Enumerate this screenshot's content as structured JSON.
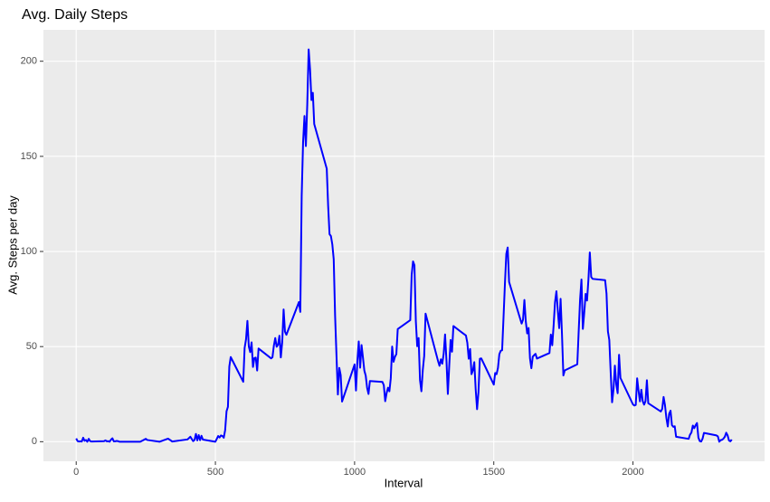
{
  "chart_data": {
    "type": "line",
    "title": "Avg. Daily Steps",
    "x_label": "Interval",
    "y_label": "Avg. Steps per day",
    "x": [
      0,
      5,
      10,
      15,
      20,
      25,
      30,
      35,
      40,
      45,
      50,
      55,
      100,
      105,
      110,
      115,
      120,
      125,
      130,
      135,
      140,
      145,
      150,
      155,
      200,
      230,
      250,
      255,
      300,
      330,
      345,
      400,
      410,
      420,
      425,
      430,
      435,
      440,
      445,
      450,
      455,
      500,
      505,
      510,
      515,
      520,
      525,
      530,
      535,
      540,
      545,
      550,
      555,
      600,
      605,
      610,
      615,
      620,
      625,
      630,
      635,
      640,
      645,
      650,
      655,
      700,
      705,
      710,
      715,
      720,
      725,
      730,
      735,
      740,
      745,
      750,
      755,
      800,
      805,
      810,
      815,
      820,
      825,
      830,
      835,
      840,
      845,
      850,
      855,
      900,
      905,
      910,
      915,
      920,
      925,
      930,
      935,
      940,
      945,
      950,
      955,
      1000,
      1005,
      1010,
      1015,
      1020,
      1025,
      1030,
      1035,
      1040,
      1045,
      1050,
      1055,
      1100,
      1105,
      1110,
      1115,
      1120,
      1125,
      1130,
      1135,
      1140,
      1145,
      1150,
      1155,
      1200,
      1205,
      1210,
      1215,
      1220,
      1225,
      1230,
      1235,
      1240,
      1245,
      1250,
      1255,
      1300,
      1305,
      1310,
      1315,
      1320,
      1325,
      1330,
      1335,
      1340,
      1345,
      1350,
      1355,
      1400,
      1405,
      1410,
      1415,
      1420,
      1425,
      1430,
      1435,
      1440,
      1445,
      1450,
      1455,
      1500,
      1505,
      1510,
      1515,
      1520,
      1525,
      1530,
      1535,
      1540,
      1545,
      1550,
      1555,
      1600,
      1605,
      1610,
      1615,
      1620,
      1625,
      1630,
      1635,
      1640,
      1645,
      1650,
      1655,
      1700,
      1705,
      1710,
      1715,
      1720,
      1725,
      1730,
      1735,
      1740,
      1745,
      1750,
      1755,
      1800,
      1805,
      1810,
      1815,
      1820,
      1825,
      1830,
      1835,
      1840,
      1845,
      1850,
      1855,
      1900,
      1905,
      1910,
      1915,
      1920,
      1925,
      1930,
      1935,
      1940,
      1945,
      1950,
      1955,
      2000,
      2005,
      2010,
      2015,
      2020,
      2025,
      2030,
      2035,
      2040,
      2045,
      2050,
      2055,
      2100,
      2105,
      2110,
      2115,
      2120,
      2125,
      2130,
      2135,
      2140,
      2145,
      2150,
      2155,
      2200,
      2205,
      2210,
      2215,
      2220,
      2225,
      2230,
      2235,
      2240,
      2245,
      2250,
      2255,
      2300,
      2305,
      2310,
      2315,
      2320,
      2325,
      2330,
      2335,
      2340,
      2345,
      2350,
      2355
    ],
    "series": [
      {
        "name": "Avg. Steps",
        "color": "#0000ff",
        "values": [
          1.7,
          0.3,
          0.1,
          0.2,
          0.1,
          2.1,
          0.5,
          0.9,
          0,
          1.5,
          0.3,
          0.1,
          0.3,
          0.7,
          0.2,
          0.3,
          0,
          1.1,
          1.8,
          0.2,
          0.2,
          0.4,
          0.3,
          0,
          0,
          0,
          1.5,
          0.9,
          0,
          1.6,
          0.1,
          1.2,
          2.6,
          0.3,
          0.9,
          4.1,
          0.7,
          3.5,
          0.8,
          3.1,
          1.1,
          0,
          1.5,
          3,
          2.2,
          3.3,
          3,
          2.1,
          6.1,
          16,
          18.3,
          39.5,
          44.5,
          31.5,
          49.3,
          53.8,
          63.5,
          50,
          47.1,
          52.2,
          39.3,
          44,
          44.2,
          37.4,
          49,
          43.8,
          44.4,
          50.5,
          54.5,
          49.9,
          51,
          55.7,
          44.3,
          52.3,
          69.5,
          57.8,
          56.2,
          73.4,
          68.2,
          129.4,
          157.5,
          171.2,
          155.4,
          177.3,
          206.2,
          195.9,
          179.6,
          183.4,
          167,
          143.5,
          124,
          109.1,
          108.1,
          103.7,
          95.9,
          66.2,
          45.2,
          24.8,
          38.8,
          35,
          21.1,
          40.6,
          26.9,
          42.4,
          52.7,
          38.9,
          50.8,
          44.3,
          37.4,
          34.7,
          28.3,
          25.1,
          31.9,
          31.4,
          29.7,
          21.3,
          25.5,
          28.4,
          26.5,
          33.4,
          50,
          42,
          44.6,
          46,
          59.2,
          63.9,
          87.7,
          94.8,
          92.8,
          63.4,
          50.2,
          54.5,
          32.4,
          26.5,
          37.7,
          45,
          67.3,
          42.3,
          39.9,
          43.3,
          41,
          46.2,
          56.4,
          42.8,
          25.1,
          40,
          53.5,
          47.3,
          60.8,
          55.8,
          52,
          43.6,
          48.7,
          35.5,
          37.5,
          41.8,
          27.5,
          17.1,
          26.1,
          43.6,
          43.8,
          30,
          36.1,
          35.5,
          38.8,
          46,
          47.8,
          48.1,
          65.3,
          82.9,
          98.7,
          102.1,
          84,
          62.1,
          64.1,
          74.5,
          63.2,
          56.9,
          59.8,
          43.9,
          38.6,
          44.7,
          45.5,
          46.2,
          43.7,
          46.6,
          56.3,
          50.7,
          61.2,
          73.4,
          79.1,
          68.9,
          59.7,
          75.1,
          56.5,
          34.8,
          37.5,
          40.7,
          58,
          74.7,
          85.3,
          59.3,
          67.8,
          77.7,
          74.2,
          85.3,
          99.5,
          86.6,
          85.6,
          84.9,
          77.8,
          58,
          53.4,
          36.3,
          20.7,
          27.4,
          40,
          30.2,
          25.5,
          45.7,
          33.5,
          19.6,
          19,
          19.3,
          33.3,
          26.8,
          21.2,
          27.3,
          21.3,
          19.5,
          21.3,
          32.3,
          20.2,
          15.9,
          17.2,
          23.5,
          19.2,
          12.5,
          8,
          14.7,
          16.3,
          8.7,
          7.8,
          8.1,
          2.6,
          1.5,
          3.7,
          4.8,
          8.5,
          7.1,
          8.7,
          9.8,
          2.2,
          0.3,
          0.1,
          1.6,
          4.6,
          3.3,
          2.8,
          0,
          0.8,
          1,
          1.6,
          2.6,
          4.7,
          3.3,
          0.6,
          0.2,
          1.1
        ]
      }
    ],
    "xlim": [
      -117.75,
      2472.75
    ],
    "ylim": [
      -10.3,
      216.5
    ],
    "xticks": [
      0,
      500,
      1000,
      1500,
      2000
    ],
    "yticks": [
      0,
      50,
      100,
      150,
      200
    ],
    "grid": true
  }
}
